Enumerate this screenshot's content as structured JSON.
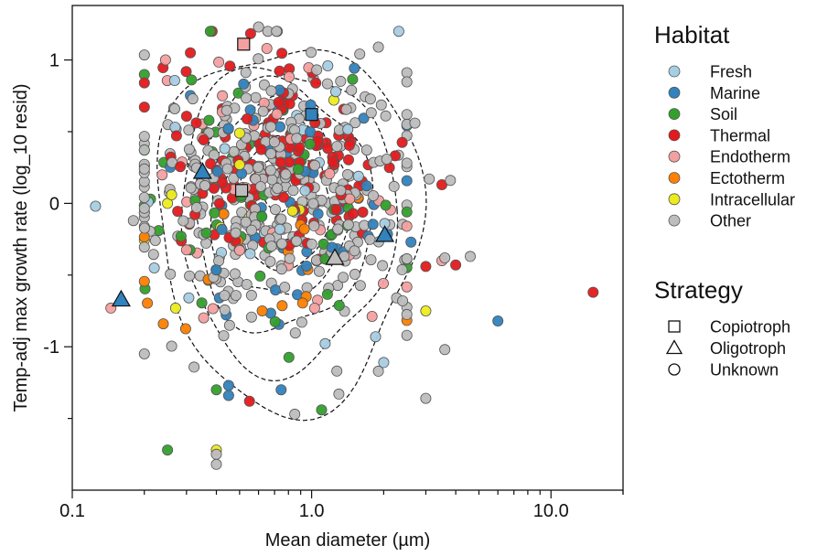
{
  "chart_data": {
    "type": "scatter",
    "title": "",
    "xlabel": "Mean diameter (µm)",
    "ylabel": "Temp-adj max growth rate (log_10 resid)",
    "x_scale": "log",
    "xlim": [
      0.1,
      20
    ],
    "ylim": [
      -2,
      1.38
    ],
    "x_ticks": [
      {
        "value": 0.1,
        "label": "0.1"
      },
      {
        "value": 1,
        "label": "1.0"
      },
      {
        "value": 10,
        "label": "10.0"
      }
    ],
    "y_ticks": [
      {
        "value": 1,
        "label": "1"
      },
      {
        "value": 0,
        "label": "0"
      },
      {
        "value": -1,
        "label": "-1"
      }
    ],
    "grid": false,
    "legend_placement": "right",
    "habitat_legend": {
      "title": "Habitat",
      "items": [
        {
          "label": "Fresh",
          "color": "#a6cee3"
        },
        {
          "label": "Marine",
          "color": "#3182bd"
        },
        {
          "label": "Soil",
          "color": "#33a02c"
        },
        {
          "label": "Thermal",
          "color": "#e31a1c"
        },
        {
          "label": "Endotherm",
          "color": "#f4a0a0"
        },
        {
          "label": "Ectotherm",
          "color": "#ff7f00"
        },
        {
          "label": "Intracellular",
          "color": "#ecec1c"
        },
        {
          "label": "Other",
          "color": "#bdbdbd"
        }
      ]
    },
    "strategy_legend": {
      "title": "Strategy",
      "items": [
        {
          "label": "Copiotroph",
          "shape": "square"
        },
        {
          "label": "Oligotroph",
          "shape": "triangle"
        },
        {
          "label": "Unknown",
          "shape": "circle"
        }
      ]
    },
    "density_contour_levels": [
      {
        "xc": 0.8,
        "yc": -0.1,
        "rx": 0.55,
        "ry": 1.32
      },
      {
        "xc": 0.78,
        "yc": -0.05,
        "rx": 0.45,
        "ry": 1.1
      },
      {
        "xc": 0.75,
        "yc": 0.0,
        "rx": 0.37,
        "ry": 0.9
      },
      {
        "xc": 0.73,
        "yc": 0.05,
        "rx": 0.29,
        "ry": 0.72
      },
      {
        "xc": 0.72,
        "yc": 0.08,
        "rx": 0.22,
        "ry": 0.55
      },
      {
        "xc": 0.72,
        "yc": 0.12,
        "rx": 0.14,
        "ry": 0.38
      },
      {
        "xc": 0.72,
        "yc": 0.15,
        "rx": 0.07,
        "ry": 0.2
      }
    ],
    "special_points": [
      {
        "x": 0.52,
        "y": 1.11,
        "habitat": "Endotherm",
        "strategy": "Copiotroph"
      },
      {
        "x": 1.0,
        "y": 0.62,
        "habitat": "Marine",
        "strategy": "Copiotroph"
      },
      {
        "x": 0.51,
        "y": 0.09,
        "habitat": "Other",
        "strategy": "Copiotroph"
      },
      {
        "x": 0.35,
        "y": 0.22,
        "habitat": "Marine",
        "strategy": "Oligotroph"
      },
      {
        "x": 0.16,
        "y": -0.67,
        "habitat": "Marine",
        "strategy": "Oligotroph"
      },
      {
        "x": 2.02,
        "y": -0.22,
        "habitat": "Marine",
        "strategy": "Oligotroph"
      },
      {
        "x": 1.25,
        "y": -0.38,
        "habitat": "Other",
        "strategy": "Oligotroph"
      }
    ],
    "outlier_points": [
      {
        "x": 0.125,
        "y": -0.02,
        "habitat": "Fresh"
      },
      {
        "x": 0.145,
        "y": -0.73,
        "habitat": "Endotherm"
      },
      {
        "x": 0.18,
        "y": -0.12,
        "habitat": "Other"
      },
      {
        "x": 0.2,
        "y": 0.24,
        "habitat": "Other"
      },
      {
        "x": 0.2,
        "y": -1.05,
        "habitat": "Other"
      },
      {
        "x": 0.22,
        "y": -0.45,
        "habitat": "Fresh"
      },
      {
        "x": 0.24,
        "y": -0.84,
        "habitat": "Ectotherm"
      },
      {
        "x": 0.25,
        "y": -1.72,
        "habitat": "Soil"
      },
      {
        "x": 0.4,
        "y": -1.72,
        "habitat": "Intracellular"
      },
      {
        "x": 0.4,
        "y": -1.75,
        "habitat": "Other"
      },
      {
        "x": 0.4,
        "y": -1.82,
        "habitat": "Other"
      },
      {
        "x": 0.4,
        "y": -1.3,
        "habitat": "Soil"
      },
      {
        "x": 0.45,
        "y": -1.27,
        "habitat": "Marine"
      },
      {
        "x": 0.45,
        "y": -1.34,
        "habitat": "Marine"
      },
      {
        "x": 0.55,
        "y": -1.38,
        "habitat": "Thermal"
      },
      {
        "x": 0.85,
        "y": -1.47,
        "habitat": "Other"
      },
      {
        "x": 1.1,
        "y": -1.44,
        "habitat": "Soil"
      },
      {
        "x": 1.3,
        "y": -1.33,
        "habitat": "Other"
      },
      {
        "x": 1.9,
        "y": -1.17,
        "habitat": "Other"
      },
      {
        "x": 2.0,
        "y": -1.11,
        "habitat": "Fresh"
      },
      {
        "x": 1.85,
        "y": -0.93,
        "habitat": "Fresh"
      },
      {
        "x": 2.5,
        "y": -0.92,
        "habitat": "Other"
      },
      {
        "x": 2.4,
        "y": -0.68,
        "habitat": "Other"
      },
      {
        "x": 2.6,
        "y": -0.27,
        "habitat": "Marine"
      },
      {
        "x": 3.0,
        "y": -0.75,
        "habitat": "Intracellular"
      },
      {
        "x": 3.0,
        "y": -1.36,
        "habitat": "Other"
      },
      {
        "x": 3.0,
        "y": -0.44,
        "habitat": "Thermal"
      },
      {
        "x": 3.5,
        "y": -0.4,
        "habitat": "Endotherm"
      },
      {
        "x": 3.6,
        "y": -0.38,
        "habitat": "Other"
      },
      {
        "x": 4.0,
        "y": -0.43,
        "habitat": "Thermal"
      },
      {
        "x": 4.6,
        "y": -0.37,
        "habitat": "Other"
      },
      {
        "x": 3.6,
        "y": -1.02,
        "habitat": "Other"
      },
      {
        "x": 3.5,
        "y": 0.13,
        "habitat": "Thermal"
      },
      {
        "x": 3.8,
        "y": 0.16,
        "habitat": "Other"
      },
      {
        "x": 2.7,
        "y": 0.56,
        "habitat": "Other"
      },
      {
        "x": 3.1,
        "y": 0.17,
        "habitat": "Other"
      },
      {
        "x": 6.0,
        "y": -0.82,
        "habitat": "Marine"
      },
      {
        "x": 15.0,
        "y": -0.62,
        "habitat": "Thermal"
      },
      {
        "x": 1.9,
        "y": 1.09,
        "habitat": "Other"
      },
      {
        "x": 0.6,
        "y": 1.23,
        "habitat": "Other"
      },
      {
        "x": 0.25,
        "y": 0.0,
        "habitat": "Intracellular"
      },
      {
        "x": 0.26,
        "y": 0.06,
        "habitat": "Intracellular"
      },
      {
        "x": 0.27,
        "y": -0.73,
        "habitat": "Intracellular"
      },
      {
        "x": 0.5,
        "y": 0.49,
        "habitat": "Intracellular"
      },
      {
        "x": 0.5,
        "y": 0.27,
        "habitat": "Intracellular"
      }
    ],
    "core_clusters": [
      {
        "habitat": "Other",
        "count": 340,
        "xc": 0.72,
        "yc": 0.1,
        "sx": 0.3,
        "sy": 0.48
      },
      {
        "habitat": "Thermal",
        "count": 140,
        "xc": 0.75,
        "yc": 0.32,
        "sx": 0.27,
        "sy": 0.33
      },
      {
        "habitat": "Soil",
        "count": 60,
        "xc": 0.6,
        "yc": 0.0,
        "sx": 0.3,
        "sy": 0.5
      },
      {
        "habitat": "Marine",
        "count": 55,
        "xc": 0.85,
        "yc": 0.08,
        "sx": 0.28,
        "sy": 0.45
      },
      {
        "habitat": "Endotherm",
        "count": 40,
        "xc": 0.6,
        "yc": 0.2,
        "sx": 0.3,
        "sy": 0.5
      },
      {
        "habitat": "Fresh",
        "count": 22,
        "xc": 0.8,
        "yc": -0.05,
        "sx": 0.33,
        "sy": 0.5
      },
      {
        "habitat": "Ectotherm",
        "count": 18,
        "xc": 0.55,
        "yc": -0.4,
        "sx": 0.3,
        "sy": 0.35
      },
      {
        "habitat": "Intracellular",
        "count": 6,
        "xc": 0.55,
        "yc": 0.1,
        "sx": 0.3,
        "sy": 0.4
      }
    ]
  }
}
